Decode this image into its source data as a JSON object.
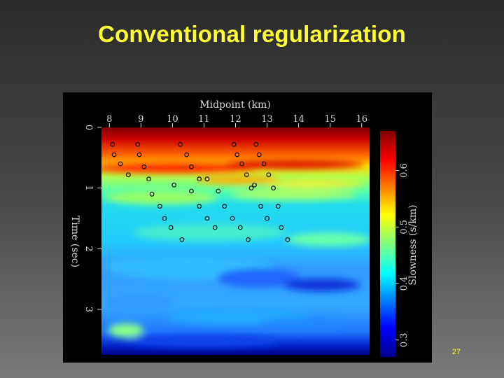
{
  "slide": {
    "title": "Conventional regularization",
    "page_number": "27"
  },
  "figure": {
    "x_axis": {
      "label": "Midpoint (km)",
      "ticks": [
        "8",
        "9",
        "10",
        "11",
        "12",
        "13",
        "14",
        "15",
        "16"
      ],
      "range": [
        7.75,
        16.25
      ]
    },
    "y_axis": {
      "label": "Time (sec)",
      "ticks": [
        "0",
        "1",
        "2",
        "3"
      ],
      "range": [
        0,
        3.75
      ]
    },
    "colorbar": {
      "label": "Slowness (s/km)",
      "ticks": [
        "0.3",
        "0.4",
        "0.5",
        "0.6"
      ],
      "range": [
        0.27,
        0.67
      ],
      "colormap": "jet"
    },
    "pick_markers": [
      {
        "x": 8.1,
        "t": 0.28
      },
      {
        "x": 8.15,
        "t": 0.45
      },
      {
        "x": 8.35,
        "t": 0.6
      },
      {
        "x": 8.6,
        "t": 0.78
      },
      {
        "x": 8.9,
        "t": 0.28
      },
      {
        "x": 8.95,
        "t": 0.45
      },
      {
        "x": 9.1,
        "t": 0.65
      },
      {
        "x": 9.25,
        "t": 0.85
      },
      {
        "x": 9.35,
        "t": 1.1
      },
      {
        "x": 9.6,
        "t": 1.3
      },
      {
        "x": 9.75,
        "t": 1.5
      },
      {
        "x": 9.95,
        "t": 1.65
      },
      {
        "x": 10.3,
        "t": 1.85
      },
      {
        "x": 10.05,
        "t": 0.95
      },
      {
        "x": 10.6,
        "t": 1.05
      },
      {
        "x": 10.85,
        "t": 1.3
      },
      {
        "x": 11.1,
        "t": 1.5
      },
      {
        "x": 11.35,
        "t": 1.65
      },
      {
        "x": 10.25,
        "t": 0.28
      },
      {
        "x": 10.45,
        "t": 0.45
      },
      {
        "x": 10.6,
        "t": 0.65
      },
      {
        "x": 10.85,
        "t": 0.85
      },
      {
        "x": 11.1,
        "t": 0.85
      },
      {
        "x": 11.45,
        "t": 1.05
      },
      {
        "x": 11.65,
        "t": 1.3
      },
      {
        "x": 11.9,
        "t": 1.5
      },
      {
        "x": 12.15,
        "t": 1.65
      },
      {
        "x": 12.4,
        "t": 1.85
      },
      {
        "x": 11.95,
        "t": 0.28
      },
      {
        "x": 12.05,
        "t": 0.45
      },
      {
        "x": 12.2,
        "t": 0.6
      },
      {
        "x": 12.35,
        "t": 0.78
      },
      {
        "x": 12.5,
        "t": 1.0
      },
      {
        "x": 12.65,
        "t": 0.28
      },
      {
        "x": 12.75,
        "t": 0.45
      },
      {
        "x": 12.9,
        "t": 0.6
      },
      {
        "x": 13.05,
        "t": 0.78
      },
      {
        "x": 13.2,
        "t": 1.0
      },
      {
        "x": 12.8,
        "t": 1.3
      },
      {
        "x": 13.0,
        "t": 1.5
      },
      {
        "x": 13.35,
        "t": 1.3
      },
      {
        "x": 13.45,
        "t": 1.65
      },
      {
        "x": 13.65,
        "t": 1.85
      },
      {
        "x": 12.6,
        "t": 0.95
      }
    ]
  },
  "colors": {
    "title": "#ffff33",
    "page_number": "#ffff33",
    "figure_background": "#000000"
  }
}
